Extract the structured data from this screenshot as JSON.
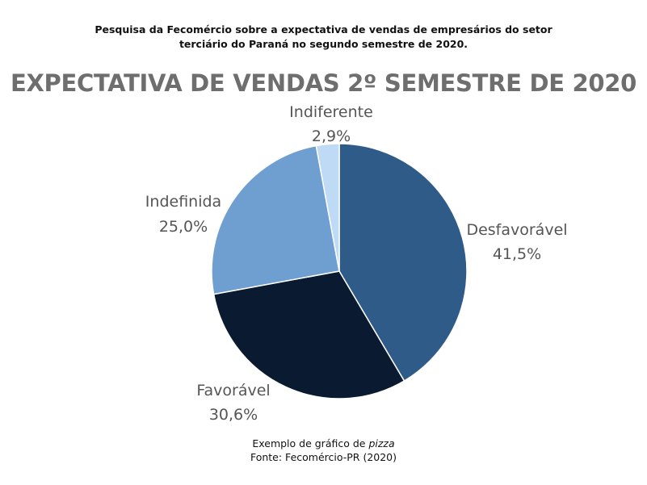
{
  "header": {
    "line1": "Pesquisa da Fecomércio sobre a expectativa de vendas de empresários do setor",
    "line2": "terciário do Paraná no segundo semestre de 2020."
  },
  "chart_data": {
    "type": "pie",
    "title": "EXPECTATIVA DE VENDAS 2º SEMESTRE DE 2020",
    "slices": [
      {
        "label": "Desfavorável",
        "value": 41.5,
        "display": "41,5%",
        "color": "#2f5b88"
      },
      {
        "label": "Favorável",
        "value": 30.6,
        "display": "30,6%",
        "color": "#0a1a30"
      },
      {
        "label": "Indefinida",
        "value": 25.0,
        "display": "25,0%",
        "color": "#6f9fd0"
      },
      {
        "label": "Indiferente",
        "value": 2.9,
        "display": "2,9%",
        "color": "#bfdaf5"
      }
    ]
  },
  "footer": {
    "caption_prefix": "Exemplo de gráfico de ",
    "caption_italic": "pizza",
    "source": "Fonte: Fecomércio-PR (2020)"
  }
}
